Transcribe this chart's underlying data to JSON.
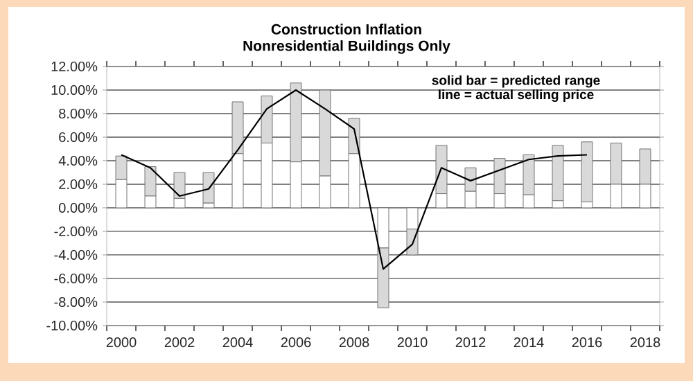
{
  "chart_data": {
    "type": "bar",
    "title": "Construction  Inflation",
    "subtitle": "Nonresidential Buildings Only",
    "categories": [
      "2000",
      null,
      "2002",
      null,
      "2004",
      null,
      "2006",
      null,
      "2008",
      null,
      "2010",
      null,
      "2012",
      null,
      "2014",
      null,
      "2016",
      null,
      "2018"
    ],
    "stacked": true,
    "series": [
      {
        "color": "#ffffff",
        "values": [
          2.4,
          1.0,
          0.8,
          0.4,
          4.6,
          5.5,
          3.9,
          2.7,
          4.6,
          -3.4,
          -1.8,
          1.2,
          1.4,
          1.2,
          1.1,
          0.6,
          0.5,
          2.0,
          2.0
        ]
      },
      {
        "color": "#d9d9d9",
        "values": [
          2.0,
          2.5,
          2.2,
          2.6,
          4.4,
          4.0,
          6.7,
          7.3,
          3.0,
          -5.1,
          -2.2,
          4.1,
          2.0,
          3.0,
          3.4,
          4.7,
          5.1,
          3.5,
          3.0
        ]
      },
      {
        "type": "line",
        "color": "#000000",
        "values": [
          4.5,
          3.4,
          1.0,
          1.6,
          4.9,
          8.4,
          10.0,
          8.4,
          6.7,
          -5.2,
          -3.1,
          3.4,
          2.3,
          3.2,
          4.1,
          4.4,
          4.5,
          null,
          null
        ]
      }
    ],
    "ylim": [
      -10,
      12
    ],
    "yticks": [
      {
        "value": -10,
        "label": "-10.00%"
      },
      {
        "value": -8,
        "label": "-8.00%"
      },
      {
        "value": -6,
        "label": "-6.00%"
      },
      {
        "value": -4,
        "label": "-4.00%"
      },
      {
        "value": -2,
        "label": "-2.00%"
      },
      {
        "value": 0,
        "label": "0.00%"
      },
      {
        "value": 2,
        "label": "2.00%"
      },
      {
        "value": 4,
        "label": "4.00%"
      },
      {
        "value": 6,
        "label": "6.00%"
      },
      {
        "value": 8,
        "label": "8.00%"
      },
      {
        "value": 10,
        "label": "10.00%"
      },
      {
        "value": 12,
        "label": "12.00%"
      }
    ],
    "grid": "y",
    "annotations": [
      "solid bar = predicted range",
      "line = actual selling price"
    ]
  }
}
